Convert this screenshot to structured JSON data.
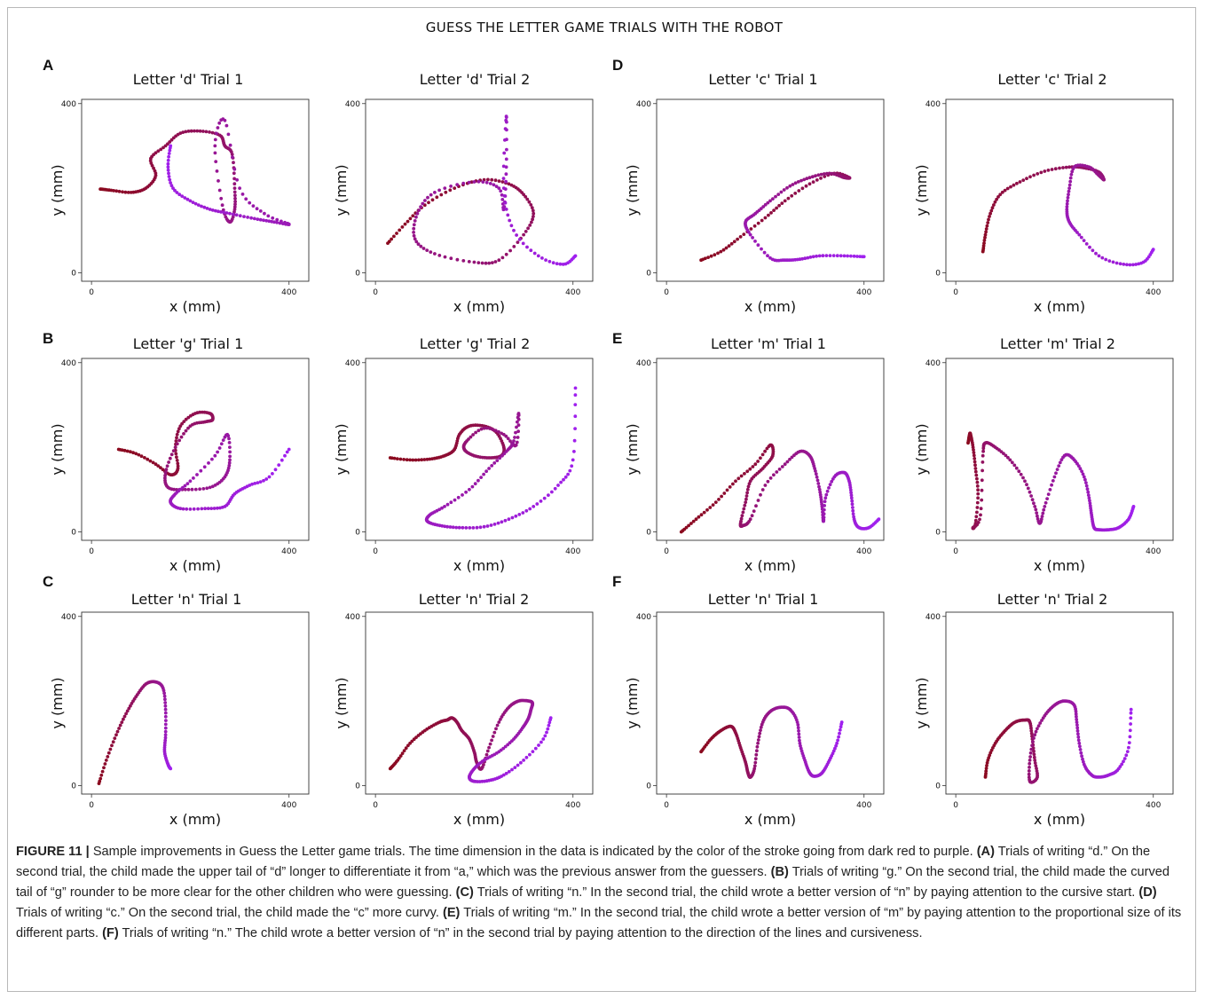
{
  "figure_title": "GUESS THE LETTER GAME TRIALS WITH THE ROBOT",
  "panel_letters": [
    "A",
    "B",
    "C",
    "D",
    "E",
    "F"
  ],
  "axis": {
    "xlabel": "x (mm)",
    "ylabel": "y (mm)",
    "tick_zero": "0",
    "tick_max": "400"
  },
  "colors": {
    "start": "#8b0a1e",
    "end": "#a020f0"
  },
  "caption": {
    "fig_label": "FIGURE 11 |",
    "intro": " Sample improvements in Guess the Letter game trials. The time dimension in the data is indicated by the color of the stroke going from dark red to purple. ",
    "a_label": "(A)",
    "a_text": " Trials of writing “d.” On the second trial, the child made the upper tail of “d” longer to differentiate it from “a,” which was the previous answer from the guessers. ",
    "b_label": "(B)",
    "b_text": " Trials of writing “g.” On the second trial, the child made the curved tail of “g” rounder to be more clear for the other children who were guessing. ",
    "c_label": "(C)",
    "c_text": " Trials of writing “n.” In the second trial, the child wrote a better version of “n” by paying attention to the cursive start. ",
    "d_label": "(D)",
    "d_text": " Trials of writing “c.” On the second trial, the child made the “c” more curvy. ",
    "e_label": "(E)",
    "e_text": " Trials of writing “m.” In the second trial, the child wrote a better version of “m” by paying attention to the proportional size of its different parts. ",
    "f_label": "(F)",
    "f_text": " Trials of writing “n.” The child wrote a better version of “n” in the second trial by paying attention to the direction of the lines and cursiveness."
  },
  "chart_data": [
    {
      "type": "scatter",
      "title": "Letter 'd' Trial 1",
      "xlabel": "x (mm)",
      "ylabel": "y (mm)",
      "xlim": [
        -20,
        440
      ],
      "ylim": [
        -20,
        410
      ],
      "x": [
        18,
        40,
        80,
        110,
        130,
        120,
        150,
        180,
        220,
        260,
        270,
        285,
        290,
        290,
        280,
        265,
        250,
        270,
        300,
        350,
        400,
        370,
        330,
        280,
        240,
        200,
        165,
        155,
        160
      ],
      "y": [
        198,
        195,
        190,
        200,
        230,
        270,
        300,
        330,
        335,
        325,
        300,
        280,
        200,
        150,
        120,
        160,
        300,
        360,
        200,
        140,
        115,
        120,
        128,
        140,
        150,
        170,
        200,
        250,
        300
      ]
    },
    {
      "type": "scatter",
      "title": "Letter 'd' Trial 2",
      "xlabel": "x (mm)",
      "ylabel": "y (mm)",
      "xlim": [
        -20,
        440
      ],
      "ylim": [
        -20,
        410
      ],
      "x": [
        25,
        60,
        100,
        160,
        220,
        270,
        300,
        320,
        300,
        250,
        200,
        120,
        80,
        85,
        120,
        200,
        250,
        260,
        265,
        265,
        260,
        280,
        330,
        380,
        405
      ],
      "y": [
        70,
        115,
        160,
        200,
        220,
        210,
        185,
        140,
        90,
        30,
        25,
        45,
        80,
        140,
        190,
        215,
        200,
        150,
        250,
        370,
        200,
        100,
        40,
        20,
        40
      ]
    },
    {
      "type": "scatter",
      "title": "Letter 'c' Trial 1",
      "xlabel": "x (mm)",
      "ylabel": "y (mm)",
      "xlim": [
        -20,
        440
      ],
      "ylim": [
        -20,
        410
      ],
      "x": [
        70,
        110,
        150,
        200,
        240,
        290,
        340,
        370,
        360,
        330,
        290,
        250,
        210,
        180,
        160,
        170,
        210,
        240,
        270,
        310,
        360,
        400
      ],
      "y": [
        30,
        50,
        85,
        130,
        170,
        210,
        235,
        225,
        225,
        235,
        225,
        205,
        170,
        140,
        120,
        90,
        35,
        30,
        32,
        40,
        40,
        38
      ]
    },
    {
      "type": "scatter",
      "title": "Letter 'c' Trial 2",
      "xlabel": "x (mm)",
      "ylabel": "y (mm)",
      "xlim": [
        -20,
        440
      ],
      "ylim": [
        -20,
        410
      ],
      "x": [
        55,
        60,
        70,
        90,
        130,
        180,
        230,
        260,
        290,
        300,
        290,
        270,
        240,
        230,
        225,
        230,
        250,
        290,
        340,
        380,
        400
      ],
      "y": [
        50,
        90,
        140,
        185,
        215,
        240,
        250,
        248,
        238,
        220,
        230,
        250,
        250,
        200,
        150,
        120,
        90,
        40,
        20,
        25,
        55
      ]
    },
    {
      "type": "scatter",
      "title": "Letter 'g' Trial 1",
      "xlabel": "x (mm)",
      "ylabel": "y (mm)",
      "xlim": [
        -20,
        440
      ],
      "ylim": [
        -20,
        410
      ],
      "x": [
        55,
        90,
        130,
        160,
        175,
        170,
        180,
        210,
        240,
        245,
        230,
        200,
        170,
        150,
        155,
        190,
        240,
        270,
        280,
        275,
        250,
        200,
        170,
        160,
        180,
        230,
        270,
        290,
        320,
        360,
        400
      ],
      "y": [
        195,
        185,
        160,
        135,
        150,
        200,
        250,
        280,
        280,
        265,
        260,
        250,
        200,
        140,
        105,
        100,
        105,
        130,
        170,
        230,
        180,
        120,
        90,
        70,
        55,
        55,
        60,
        90,
        110,
        130,
        195
      ]
    },
    {
      "type": "scatter",
      "title": "Letter 'g' Trial 2",
      "xlabel": "x (mm)",
      "ylabel": "y (mm)",
      "xlim": [
        -20,
        440
      ],
      "ylim": [
        -20,
        410
      ],
      "x": [
        30,
        70,
        110,
        140,
        160,
        170,
        190,
        220,
        245,
        260,
        255,
        230,
        200,
        180,
        185,
        220,
        260,
        285,
        290,
        280,
        265,
        230,
        190,
        140,
        110,
        105,
        130,
        170,
        220,
        270,
        320,
        370,
        400,
        405
      ],
      "y": [
        175,
        170,
        172,
        180,
        195,
        230,
        250,
        250,
        235,
        200,
        180,
        175,
        180,
        195,
        215,
        245,
        230,
        205,
        280,
        215,
        190,
        150,
        100,
        60,
        40,
        25,
        15,
        10,
        12,
        30,
        60,
        110,
        170,
        340
      ]
    },
    {
      "type": "scatter",
      "title": "Letter 'm' Trial 1",
      "xlabel": "x (mm)",
      "ylabel": "y (mm)",
      "xlim": [
        -20,
        440
      ],
      "ylim": [
        -20,
        410
      ],
      "x": [
        30,
        60,
        100,
        140,
        180,
        210,
        215,
        195,
        170,
        160,
        150,
        155,
        170,
        200,
        240,
        270,
        290,
        300,
        310,
        315,
        318,
        322,
        340,
        360,
        370,
        375,
        380,
        390,
        410,
        430
      ],
      "y": [
        0,
        30,
        70,
        120,
        160,
        205,
        180,
        150,
        120,
        70,
        20,
        15,
        30,
        110,
        160,
        190,
        180,
        150,
        100,
        60,
        25,
        80,
        130,
        140,
        120,
        80,
        30,
        10,
        10,
        30
      ]
    },
    {
      "type": "scatter",
      "title": "Letter 'm' Trial 2",
      "xlabel": "x (mm)",
      "ylabel": "y (mm)",
      "xlim": [
        -20,
        440
      ],
      "ylim": [
        -20,
        410
      ],
      "x": [
        25,
        28,
        30,
        35,
        40,
        45,
        40,
        35,
        50,
        55,
        60,
        80,
        110,
        140,
        160,
        170,
        180,
        200,
        220,
        240,
        260,
        270,
        275,
        280,
        290,
        310,
        330,
        350,
        360
      ],
      "y": [
        210,
        230,
        230,
        200,
        150,
        90,
        20,
        10,
        40,
        180,
        210,
        200,
        170,
        120,
        60,
        20,
        60,
        130,
        180,
        170,
        130,
        80,
        40,
        10,
        5,
        5,
        10,
        30,
        60
      ]
    },
    {
      "type": "scatter",
      "title": "Letter 'n' Trial 1",
      "xlabel": "x (mm)",
      "ylabel": "y (mm)",
      "xlim": [
        -20,
        440
      ],
      "ylim": [
        -20,
        410
      ],
      "x": [
        15,
        30,
        50,
        70,
        90,
        110,
        130,
        145,
        150,
        150,
        148,
        155,
        160
      ],
      "y": [
        5,
        60,
        120,
        170,
        210,
        240,
        245,
        230,
        180,
        120,
        80,
        50,
        40
      ]
    },
    {
      "type": "scatter",
      "title": "Letter 'n' Trial 2",
      "xlabel": "x (mm)",
      "ylabel": "y (mm)",
      "xlim": [
        -20,
        440
      ],
      "ylim": [
        -20,
        410
      ],
      "x": [
        30,
        45,
        70,
        100,
        130,
        145,
        155,
        165,
        175,
        190,
        200,
        205,
        215,
        230,
        250,
        270,
        290,
        310,
        318,
        315,
        310,
        300,
        280,
        250,
        220,
        200,
        190,
        200,
        230,
        260,
        300,
        340,
        355
      ],
      "y": [
        40,
        60,
        100,
        130,
        150,
        155,
        160,
        150,
        130,
        110,
        80,
        55,
        40,
        90,
        150,
        185,
        200,
        200,
        195,
        180,
        160,
        140,
        110,
        80,
        60,
        40,
        20,
        10,
        12,
        25,
        60,
        110,
        160
      ]
    },
    {
      "type": "scatter",
      "title": "Letter 'n' Trial 1",
      "xlabel": "x (mm)",
      "ylabel": "y (mm)",
      "xlim": [
        -20,
        440
      ],
      "ylim": [
        -20,
        410
      ],
      "x": [
        70,
        90,
        110,
        130,
        140,
        150,
        160,
        165,
        170,
        178,
        185,
        195,
        210,
        230,
        250,
        265,
        270,
        280,
        290,
        300,
        315,
        330,
        345,
        355
      ],
      "y": [
        80,
        110,
        130,
        140,
        125,
        90,
        55,
        30,
        20,
        40,
        100,
        150,
        175,
        185,
        180,
        150,
        100,
        60,
        30,
        22,
        30,
        60,
        100,
        150
      ]
    },
    {
      "type": "scatter",
      "title": "Letter 'n' Trial 2",
      "xlabel": "x (mm)",
      "ylabel": "y (mm)",
      "xlim": [
        -20,
        440
      ],
      "ylim": [
        -20,
        410
      ],
      "x": [
        60,
        65,
        80,
        100,
        120,
        140,
        150,
        155,
        160,
        165,
        150,
        150,
        160,
        180,
        200,
        220,
        240,
        245,
        250,
        260,
        275,
        290,
        310,
        330,
        350,
        355
      ],
      "y": [
        20,
        60,
        100,
        130,
        150,
        155,
        150,
        110,
        60,
        20,
        10,
        60,
        120,
        165,
        190,
        200,
        190,
        150,
        100,
        50,
        25,
        20,
        25,
        40,
        90,
        180
      ]
    }
  ]
}
